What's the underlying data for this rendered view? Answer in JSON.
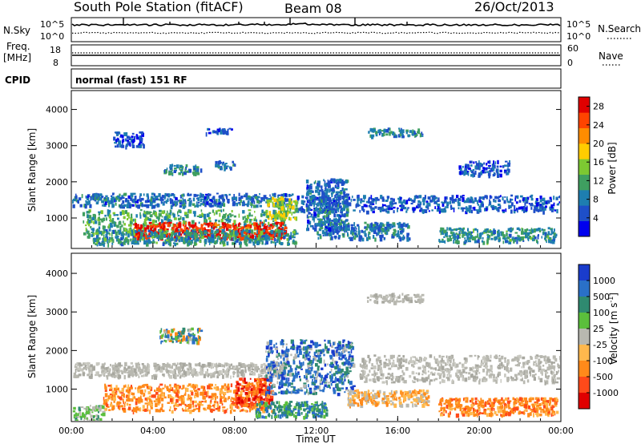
{
  "header": {
    "station": "South Pole Station (fitACF)",
    "beam": "Beam 08",
    "date": "26/Oct/2013"
  },
  "summary_panel": {
    "nsky_label": "N.Sky",
    "nsky_ticks": [
      "10^5",
      "10^0"
    ],
    "nsearch_label": "N.Search",
    "freq_label_line1": "Freq.",
    "freq_label_line2": "[MHz]",
    "freq_ticks": [
      "18",
      "8"
    ],
    "nave_label": "Nave",
    "nave_ticks": [
      "60",
      "0"
    ],
    "cpid_label": "CPID",
    "cpid_value": "normal (fast) 151 RF"
  },
  "chart_data": [
    {
      "type": "heatmap",
      "panel": "power",
      "xlabel": "",
      "ylabel": "Slant Range [km]",
      "x_ticks": [
        "00:00",
        "04:00",
        "08:00",
        "12:00",
        "16:00",
        "20:00",
        "00:00"
      ],
      "xlim_hours": [
        0,
        24
      ],
      "ylim_km": [
        180,
        4500
      ],
      "y_ticks": [
        "1000",
        "2000",
        "3000",
        "4000"
      ],
      "y_tick_values": [
        1000,
        2000,
        3000,
        4000
      ],
      "colorbar": {
        "label": "Power [dB]",
        "ticks": [
          "4",
          "8",
          "12",
          "16",
          "20",
          "24",
          "28"
        ],
        "tick_values": [
          4,
          8,
          12,
          16,
          20,
          24,
          28
        ],
        "range": [
          0,
          30
        ],
        "colors": [
          "#0000ee",
          "#1e4fc8",
          "#1e7eb0",
          "#3f9f60",
          "#7dc832",
          "#ffcc00",
          "#ff8c00",
          "#ff4400",
          "#e00000"
        ]
      },
      "echo_regions": [
        {
          "t0": 0.0,
          "t1": 10.8,
          "r0": 1350,
          "r1": 1700,
          "level": 7
        },
        {
          "t0": 11.0,
          "t1": 24.0,
          "r0": 1200,
          "r1": 1650,
          "level": 6
        },
        {
          "t0": 0.5,
          "t1": 10.5,
          "r0": 500,
          "r1": 1250,
          "level": 12
        },
        {
          "t0": 3.0,
          "t1": 10.5,
          "r0": 450,
          "r1": 900,
          "level": 27
        },
        {
          "t0": 1.0,
          "t1": 11.0,
          "r0": 300,
          "r1": 700,
          "level": 10
        },
        {
          "t0": 4.5,
          "t1": 6.3,
          "r0": 2250,
          "r1": 2500,
          "level": 9
        },
        {
          "t0": 7.0,
          "t1": 8.0,
          "r0": 2400,
          "r1": 2600,
          "level": 8
        },
        {
          "t0": 14.5,
          "t1": 17.2,
          "r0": 3280,
          "r1": 3500,
          "level": 9
        },
        {
          "t0": 12.0,
          "t1": 16.5,
          "r0": 450,
          "r1": 900,
          "level": 8
        },
        {
          "t0": 18.0,
          "t1": 23.8,
          "r0": 350,
          "r1": 750,
          "level": 10
        },
        {
          "t0": 9.5,
          "t1": 11.0,
          "r0": 1000,
          "r1": 1600,
          "level": 16
        },
        {
          "t0": 11.5,
          "t1": 13.5,
          "r0": 700,
          "r1": 2100,
          "level": 7
        },
        {
          "t0": 2.0,
          "t1": 3.5,
          "r0": 3000,
          "r1": 3400,
          "level": 5
        },
        {
          "t0": 6.5,
          "t1": 7.8,
          "r0": 3350,
          "r1": 3500,
          "level": 5
        },
        {
          "t0": 19.0,
          "t1": 21.5,
          "r0": 2200,
          "r1": 2600,
          "level": 5
        }
      ]
    },
    {
      "type": "heatmap",
      "panel": "velocity",
      "xlabel": "Time UT",
      "ylabel": "Slant Range [km]",
      "x_ticks": [
        "00:00",
        "04:00",
        "08:00",
        "12:00",
        "16:00",
        "20:00",
        "00:00"
      ],
      "xlim_hours": [
        0,
        24
      ],
      "ylim_km": [
        180,
        4500
      ],
      "y_ticks": [
        "1000",
        "2000",
        "3000",
        "4000"
      ],
      "y_tick_values": [
        1000,
        2000,
        3000,
        4000
      ],
      "colorbar": {
        "label": "Velocity [m s^-1]",
        "ticks": [
          "1000",
          "500",
          "100",
          "25",
          "-25",
          "-100",
          "-500",
          "-1000"
        ],
        "colors": [
          "#1a3ccc",
          "#2a70c8",
          "#2f8a70",
          "#5bbf3c",
          "#b8b8b0",
          "#ffb84d",
          "#ff8a1a",
          "#ff4a1a",
          "#e00000"
        ]
      },
      "echo_regions": [
        {
          "t0": 0.0,
          "t1": 10.5,
          "r0": 1350,
          "r1": 1700,
          "class": "ground"
        },
        {
          "t0": 14.0,
          "t1": 24.0,
          "r0": 1200,
          "r1": 1900,
          "class": "ground"
        },
        {
          "t0": 1.5,
          "t1": 9.8,
          "r0": 450,
          "r1": 1150,
          "class": "neg_500"
        },
        {
          "t0": 8.0,
          "t1": 9.8,
          "r0": 600,
          "r1": 1300,
          "class": "neg_1000"
        },
        {
          "t0": 9.5,
          "t1": 13.8,
          "r0": 900,
          "r1": 2300,
          "class": "pos_1000"
        },
        {
          "t0": 9.0,
          "t1": 12.5,
          "r0": 300,
          "r1": 700,
          "class": "pos_100"
        },
        {
          "t0": 4.3,
          "t1": 6.3,
          "r0": 2250,
          "r1": 2600,
          "class": "mix"
        },
        {
          "t0": 18.0,
          "t1": 23.8,
          "r0": 350,
          "r1": 800,
          "class": "neg_500"
        },
        {
          "t0": 14.5,
          "t1": 17.2,
          "r0": 3280,
          "r1": 3500,
          "class": "ground"
        },
        {
          "t0": 0.0,
          "t1": 1.5,
          "r0": 200,
          "r1": 600,
          "class": "pos_25"
        },
        {
          "t0": 13.5,
          "t1": 17.5,
          "r0": 600,
          "r1": 1000,
          "class": "neg_100"
        }
      ]
    }
  ]
}
